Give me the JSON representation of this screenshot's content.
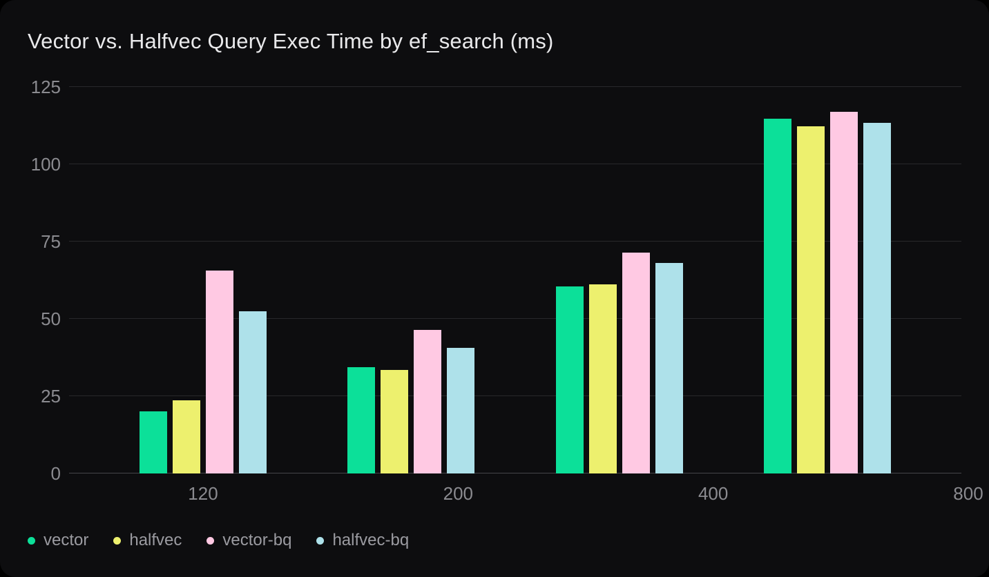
{
  "chart_data": {
    "type": "bar",
    "title": "Vector vs. Halfvec Query Exec Time by ef_search (ms)",
    "xlabel": "",
    "ylabel": "",
    "categories": [
      "120",
      "200",
      "400",
      "800"
    ],
    "series": [
      {
        "name": "vector",
        "color": "#0ce099",
        "values": [
          20.1,
          34.3,
          60.4,
          114.8
        ]
      },
      {
        "name": "halfvec",
        "color": "#edf06e",
        "values": [
          23.7,
          33.4,
          61.2,
          112.3
        ]
      },
      {
        "name": "vector-bq",
        "color": "#ffc9e3",
        "values": [
          65.7,
          46.4,
          71.5,
          117.0
        ]
      },
      {
        "name": "halfvec-bq",
        "color": "#aee1ea",
        "values": [
          52.5,
          40.6,
          68.0,
          113.4
        ]
      }
    ],
    "ylim": [
      0,
      125
    ],
    "yticks": [
      0,
      25,
      50,
      75,
      100,
      125
    ],
    "grid": true,
    "legend_position": "bottom-left"
  },
  "style": {
    "card_background": "#0d0d0f",
    "page_background": "#000000",
    "gridline_color": "#28282b",
    "zero_line_color": "#47474b",
    "title_color": "#e9e9eb",
    "tick_label_color": "#8b8b90",
    "legend_label_color": "#9b9ba1"
  }
}
